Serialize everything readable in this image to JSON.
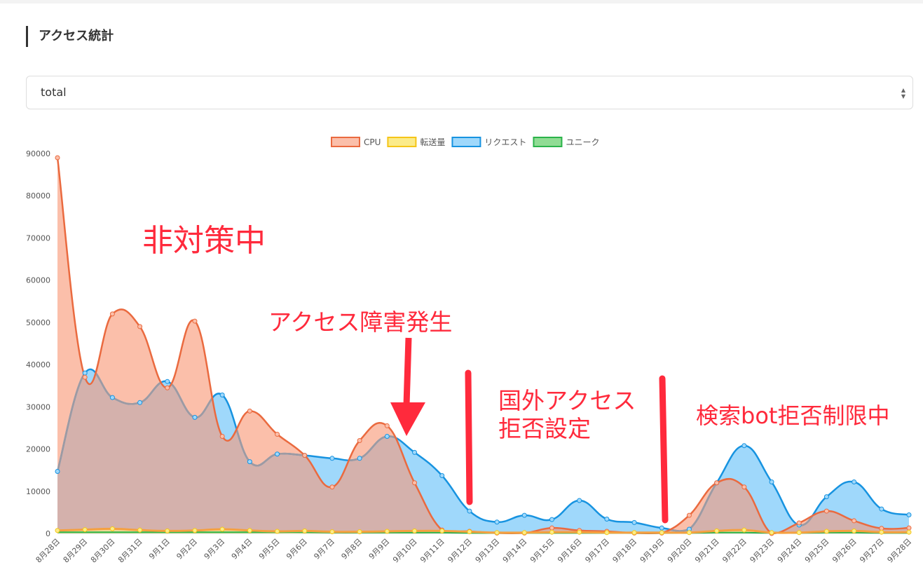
{
  "page": {
    "title": "アクセス統計"
  },
  "selector": {
    "value": "total"
  },
  "annotations": {
    "a1": "非対策中",
    "a2": "アクセス障害発生",
    "a3_line1": "国外アクセス",
    "a3_line2": "拒否設定",
    "a4": "検索bot拒否制限中"
  },
  "chart_data": {
    "type": "area",
    "legend_position": "top",
    "grid": false,
    "ylim": [
      0,
      90000
    ],
    "yticks": [
      "0",
      "10000",
      "20000",
      "30000",
      "40000",
      "50000",
      "60000",
      "70000",
      "80000",
      "90000"
    ],
    "categories": [
      "8月28日",
      "8月29日",
      "8月30日",
      "8月31日",
      "9月1日",
      "9月2日",
      "9月3日",
      "9月4日",
      "9月5日",
      "9月6日",
      "9月7日",
      "9月8日",
      "9月9日",
      "9月10日",
      "9月11日",
      "9月12日",
      "9月13日",
      "9月14日",
      "9月15日",
      "9月16日",
      "9月17日",
      "9月18日",
      "9月19日",
      "9月20日",
      "9月21日",
      "9月22日",
      "9月23日",
      "9月24日",
      "9月25日",
      "9月26日",
      "9月27日",
      "9月28日"
    ],
    "series": [
      {
        "name": "CPU",
        "color": "#ea6a3f",
        "fill": "#fbbfaa",
        "values": [
          89000,
          37000,
          52000,
          49000,
          34500,
          50300,
          23000,
          29000,
          23500,
          18500,
          11000,
          22000,
          25500,
          12000,
          800,
          500,
          100,
          100,
          1300,
          700,
          500,
          100,
          100,
          4300,
          12000,
          11000,
          0,
          2500,
          5300,
          3000,
          1200,
          1300
        ]
      },
      {
        "name": "転送量",
        "color": "#f5c518",
        "fill": "#fbeb8a",
        "values": [
          700,
          900,
          1100,
          800,
          600,
          700,
          1000,
          700,
          500,
          600,
          400,
          400,
          500,
          600,
          600,
          400,
          200,
          200,
          300,
          300,
          200,
          200,
          200,
          200,
          600,
          800,
          200,
          200,
          500,
          600,
          300,
          300
        ]
      },
      {
        "name": "リクエスト",
        "color": "#1793e0",
        "fill": "#9fd8fb",
        "values": [
          14700,
          38000,
          32200,
          31000,
          36000,
          27500,
          32800,
          17000,
          18800,
          18500,
          17800,
          17800,
          23000,
          19200,
          13700,
          5300,
          2700,
          4300,
          3300,
          7800,
          3400,
          2600,
          1300,
          1000,
          12000,
          20800,
          12200,
          2000,
          8700,
          12200,
          5800,
          4400
        ]
      },
      {
        "name": "ユニーク",
        "color": "#2bb34a",
        "fill": "#90dc94",
        "values": [
          300,
          300,
          300,
          300,
          300,
          300,
          300,
          300,
          300,
          300,
          200,
          200,
          200,
          200,
          200,
          100,
          100,
          100,
          100,
          100,
          100,
          100,
          100,
          100,
          200,
          200,
          100,
          100,
          200,
          200,
          100,
          100
        ]
      }
    ]
  }
}
